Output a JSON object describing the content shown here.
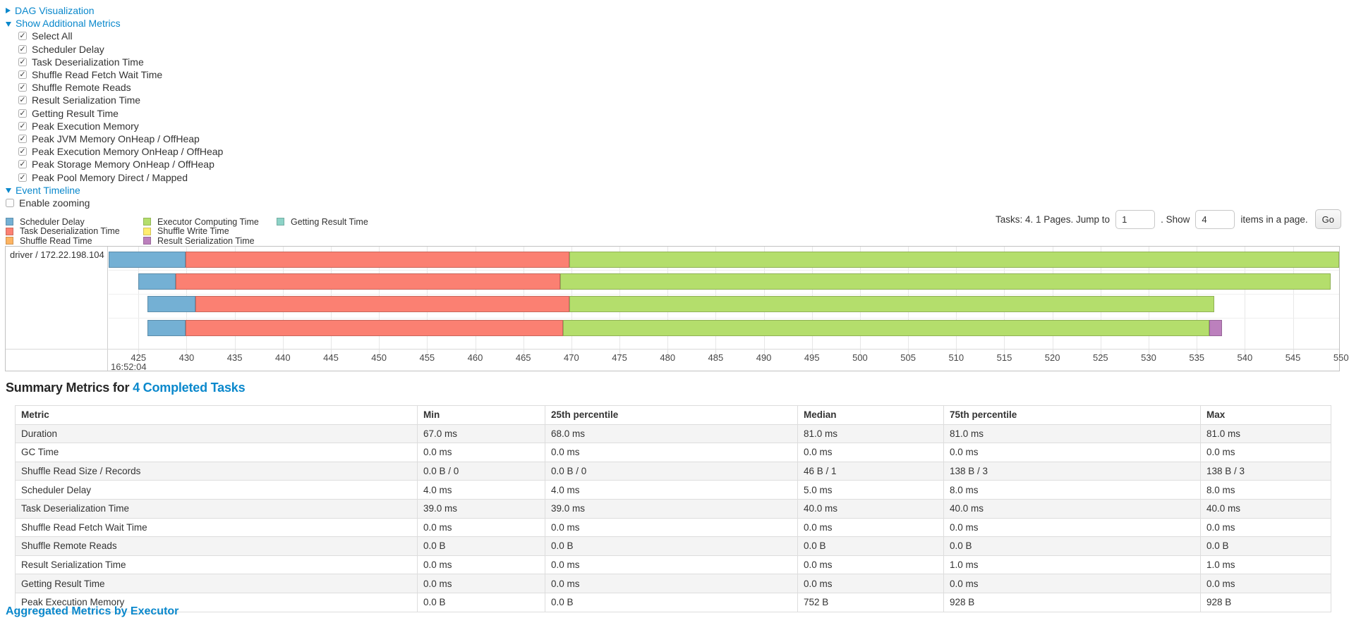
{
  "controls": {
    "dag": {
      "label": "DAG Visualization",
      "expanded": false
    },
    "additional_metrics": {
      "label": "Show Additional Metrics",
      "expanded": true
    },
    "metric_checkboxes": [
      {
        "label": "Select All",
        "checked": true
      },
      {
        "label": "Scheduler Delay",
        "checked": true
      },
      {
        "label": "Task Deserialization Time",
        "checked": true
      },
      {
        "label": "Shuffle Read Fetch Wait Time",
        "checked": true
      },
      {
        "label": "Shuffle Remote Reads",
        "checked": true
      },
      {
        "label": "Result Serialization Time",
        "checked": true
      },
      {
        "label": "Getting Result Time",
        "checked": true
      },
      {
        "label": "Peak Execution Memory",
        "checked": true
      },
      {
        "label": "Peak JVM Memory OnHeap / OffHeap",
        "checked": true
      },
      {
        "label": "Peak Execution Memory OnHeap / OffHeap",
        "checked": true
      },
      {
        "label": "Peak Storage Memory OnHeap / OffHeap",
        "checked": true
      },
      {
        "label": "Peak Pool Memory Direct / Mapped",
        "checked": true
      }
    ],
    "event_timeline": {
      "label": "Event Timeline",
      "expanded": true
    },
    "enable_zooming": {
      "label": "Enable zooming",
      "checked": false
    }
  },
  "pagination": {
    "info": "Tasks: 4. 1 Pages. Jump to",
    "jump_value": "1",
    "show_label": ". Show",
    "page_size_value": "4",
    "suffix": "items in a page.",
    "go_label": "Go"
  },
  "chart_data": {
    "type": "timeline",
    "row_label": "driver / 172.22.198.104",
    "colors": {
      "scheduler_delay": "#74B0D4",
      "task_deserialization": "#FB8072",
      "shuffle_read": "#FDB462",
      "executor_computing": "#B4DE6C",
      "shuffle_write": "#FFED6F",
      "result_serialization": "#BC80BD",
      "getting_result": "#8DD3C7"
    },
    "legend_columns": [
      [
        {
          "key": "scheduler_delay",
          "label": "Scheduler Delay"
        },
        {
          "key": "task_deserialization",
          "label": "Task Deserialization Time"
        },
        {
          "key": "shuffle_read",
          "label": "Shuffle Read Time"
        }
      ],
      [
        {
          "key": "executor_computing",
          "label": "Executor Computing Time"
        },
        {
          "key": "shuffle_write",
          "label": "Shuffle Write Time"
        },
        {
          "key": "result_serialization",
          "label": "Result Serialization Time"
        }
      ],
      [
        {
          "key": "getting_result",
          "label": "Getting Result Time"
        }
      ]
    ],
    "x_axis": {
      "min": 421.9,
      "max": 549.8,
      "tick_start": 425,
      "tick_step": 5,
      "tick_end": 550,
      "time_label": "16:52:04"
    },
    "tasks": [
      {
        "segments": [
          {
            "type": "scheduler_delay",
            "start": 421.9,
            "end": 429.9
          },
          {
            "type": "task_deserialization",
            "start": 429.9,
            "end": 469.8
          },
          {
            "type": "executor_computing",
            "start": 469.8,
            "end": 549.8
          }
        ]
      },
      {
        "segments": [
          {
            "type": "scheduler_delay",
            "start": 425.0,
            "end": 428.9
          },
          {
            "type": "task_deserialization",
            "start": 428.9,
            "end": 468.8
          },
          {
            "type": "executor_computing",
            "start": 468.8,
            "end": 548.9
          }
        ]
      },
      {
        "segments": [
          {
            "type": "scheduler_delay",
            "start": 425.9,
            "end": 430.9
          },
          {
            "type": "task_deserialization",
            "start": 430.9,
            "end": 469.8
          },
          {
            "type": "executor_computing",
            "start": 469.8,
            "end": 536.8
          }
        ]
      },
      {
        "segments": [
          {
            "type": "scheduler_delay",
            "start": 425.9,
            "end": 429.9
          },
          {
            "type": "task_deserialization",
            "start": 429.9,
            "end": 469.1
          },
          {
            "type": "executor_computing",
            "start": 469.1,
            "end": 536.3
          },
          {
            "type": "result_serialization",
            "start": 536.3,
            "end": 537.6
          }
        ]
      }
    ]
  },
  "summary": {
    "heading_prefix": "Summary Metrics for ",
    "heading_link": "4 Completed Tasks",
    "table": {
      "headers": [
        "Metric",
        "Min",
        "25th percentile",
        "Median",
        "75th percentile",
        "Max"
      ],
      "rows": [
        [
          "Duration",
          "67.0 ms",
          "68.0 ms",
          "81.0 ms",
          "81.0 ms",
          "81.0 ms"
        ],
        [
          "GC Time",
          "0.0 ms",
          "0.0 ms",
          "0.0 ms",
          "0.0 ms",
          "0.0 ms"
        ],
        [
          "Shuffle Read Size / Records",
          "0.0 B / 0",
          "0.0 B / 0",
          "46 B / 1",
          "138 B / 3",
          "138 B / 3"
        ],
        [
          "Scheduler Delay",
          "4.0 ms",
          "4.0 ms",
          "5.0 ms",
          "8.0 ms",
          "8.0 ms"
        ],
        [
          "Task Deserialization Time",
          "39.0 ms",
          "39.0 ms",
          "40.0 ms",
          "40.0 ms",
          "40.0 ms"
        ],
        [
          "Shuffle Read Fetch Wait Time",
          "0.0 ms",
          "0.0 ms",
          "0.0 ms",
          "0.0 ms",
          "0.0 ms"
        ],
        [
          "Shuffle Remote Reads",
          "0.0 B",
          "0.0 B",
          "0.0 B",
          "0.0 B",
          "0.0 B"
        ],
        [
          "Result Serialization Time",
          "0.0 ms",
          "0.0 ms",
          "0.0 ms",
          "1.0 ms",
          "1.0 ms"
        ],
        [
          "Getting Result Time",
          "0.0 ms",
          "0.0 ms",
          "0.0 ms",
          "0.0 ms",
          "0.0 ms"
        ],
        [
          "Peak Execution Memory",
          "0.0 B",
          "0.0 B",
          "752 B",
          "928 B",
          "928 B"
        ]
      ]
    }
  },
  "cutoff_heading": {
    "label": "Aggregated Metrics by Executor"
  }
}
